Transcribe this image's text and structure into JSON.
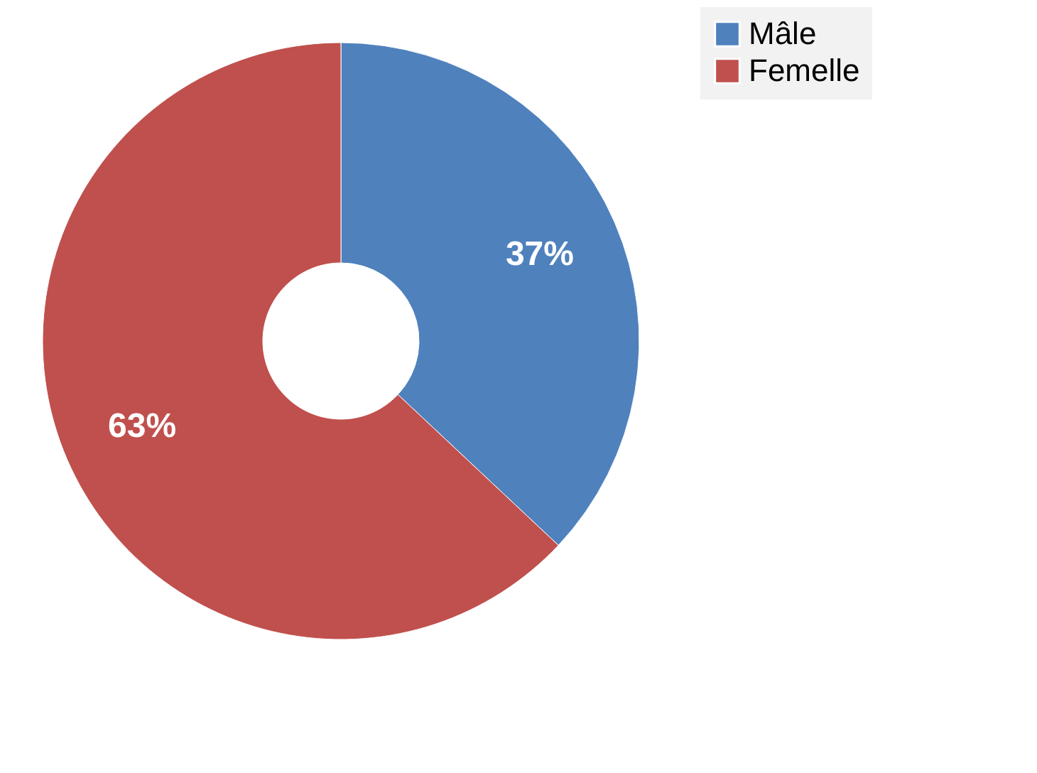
{
  "chart_data": {
    "type": "donut",
    "categories": [
      "Mâle",
      "Femelle"
    ],
    "values": [
      37,
      63
    ],
    "colors": [
      "#4f81bd",
      "#c0504d"
    ],
    "value_labels": [
      "37%",
      "63%"
    ],
    "legend": "right"
  }
}
